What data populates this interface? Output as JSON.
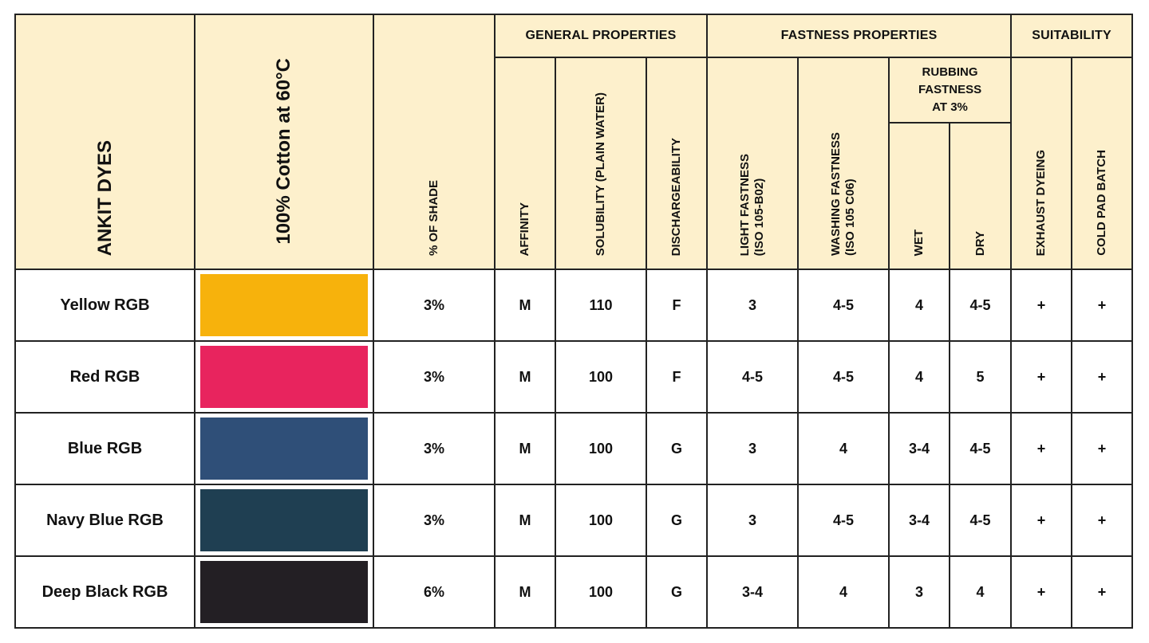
{
  "header": {
    "dyes": "ANKIT DYES",
    "cotton": "100% Cotton at 60°C",
    "shade": "% OF SHADE",
    "general": "GENERAL PROPERTIES",
    "fastness": "FASTNESS PROPERTIES",
    "suitability": "SUITABILITY",
    "affinity": "AFFINITY",
    "solubility": "SOLUBILITY (PLAIN WATER)",
    "dischargeability": "DISCHARGEABILITY",
    "light": "LIGHT FASTNESS\n(ISO 105-B02)",
    "washing": "WASHING  FASTNESS\n(ISO 105 C06)",
    "rubbing_l1": "RUBBING",
    "rubbing_l2": "FASTNESS",
    "rubbing_l3": "AT 3%",
    "wet": "WET",
    "dry": "DRY",
    "exhaust": "EXHAUST DYEING",
    "coldpad": "COLD PAD BATCH"
  },
  "colors": {
    "header_bg": "#fdf0cc",
    "border": "#222222"
  },
  "rows": [
    {
      "name": "Yellow RGB",
      "swatch": "#f7b20c",
      "shade": "3%",
      "affinity": "M",
      "solubility": "110",
      "discharge": "F",
      "light": "3",
      "washing": "4-5",
      "wet": "4",
      "dry": "4-5",
      "exhaust": "+",
      "coldpad": "+"
    },
    {
      "name": "Red RGB",
      "swatch": "#e8245e",
      "shade": "3%",
      "affinity": "M",
      "solubility": "100",
      "discharge": "F",
      "light": "4-5",
      "washing": "4-5",
      "wet": "4",
      "dry": "5",
      "exhaust": "+",
      "coldpad": "+"
    },
    {
      "name": "Blue RGB",
      "swatch": "#2f4f78",
      "shade": "3%",
      "affinity": "M",
      "solubility": "100",
      "discharge": "G",
      "light": "3",
      "washing": "4",
      "wet": "3-4",
      "dry": "4-5",
      "exhaust": "+",
      "coldpad": "+"
    },
    {
      "name": "Navy Blue RGB",
      "swatch": "#1f3f52",
      "shade": "3%",
      "affinity": "M",
      "solubility": "100",
      "discharge": "G",
      "light": "3",
      "washing": "4-5",
      "wet": "3-4",
      "dry": "4-5",
      "exhaust": "+",
      "coldpad": "+"
    },
    {
      "name": "Deep Black RGB",
      "swatch": "#231f24",
      "shade": "6%",
      "affinity": "M",
      "solubility": "100",
      "discharge": "G",
      "light": "3-4",
      "washing": "4",
      "wet": "3",
      "dry": "4",
      "exhaust": "+",
      "coldpad": "+"
    }
  ]
}
